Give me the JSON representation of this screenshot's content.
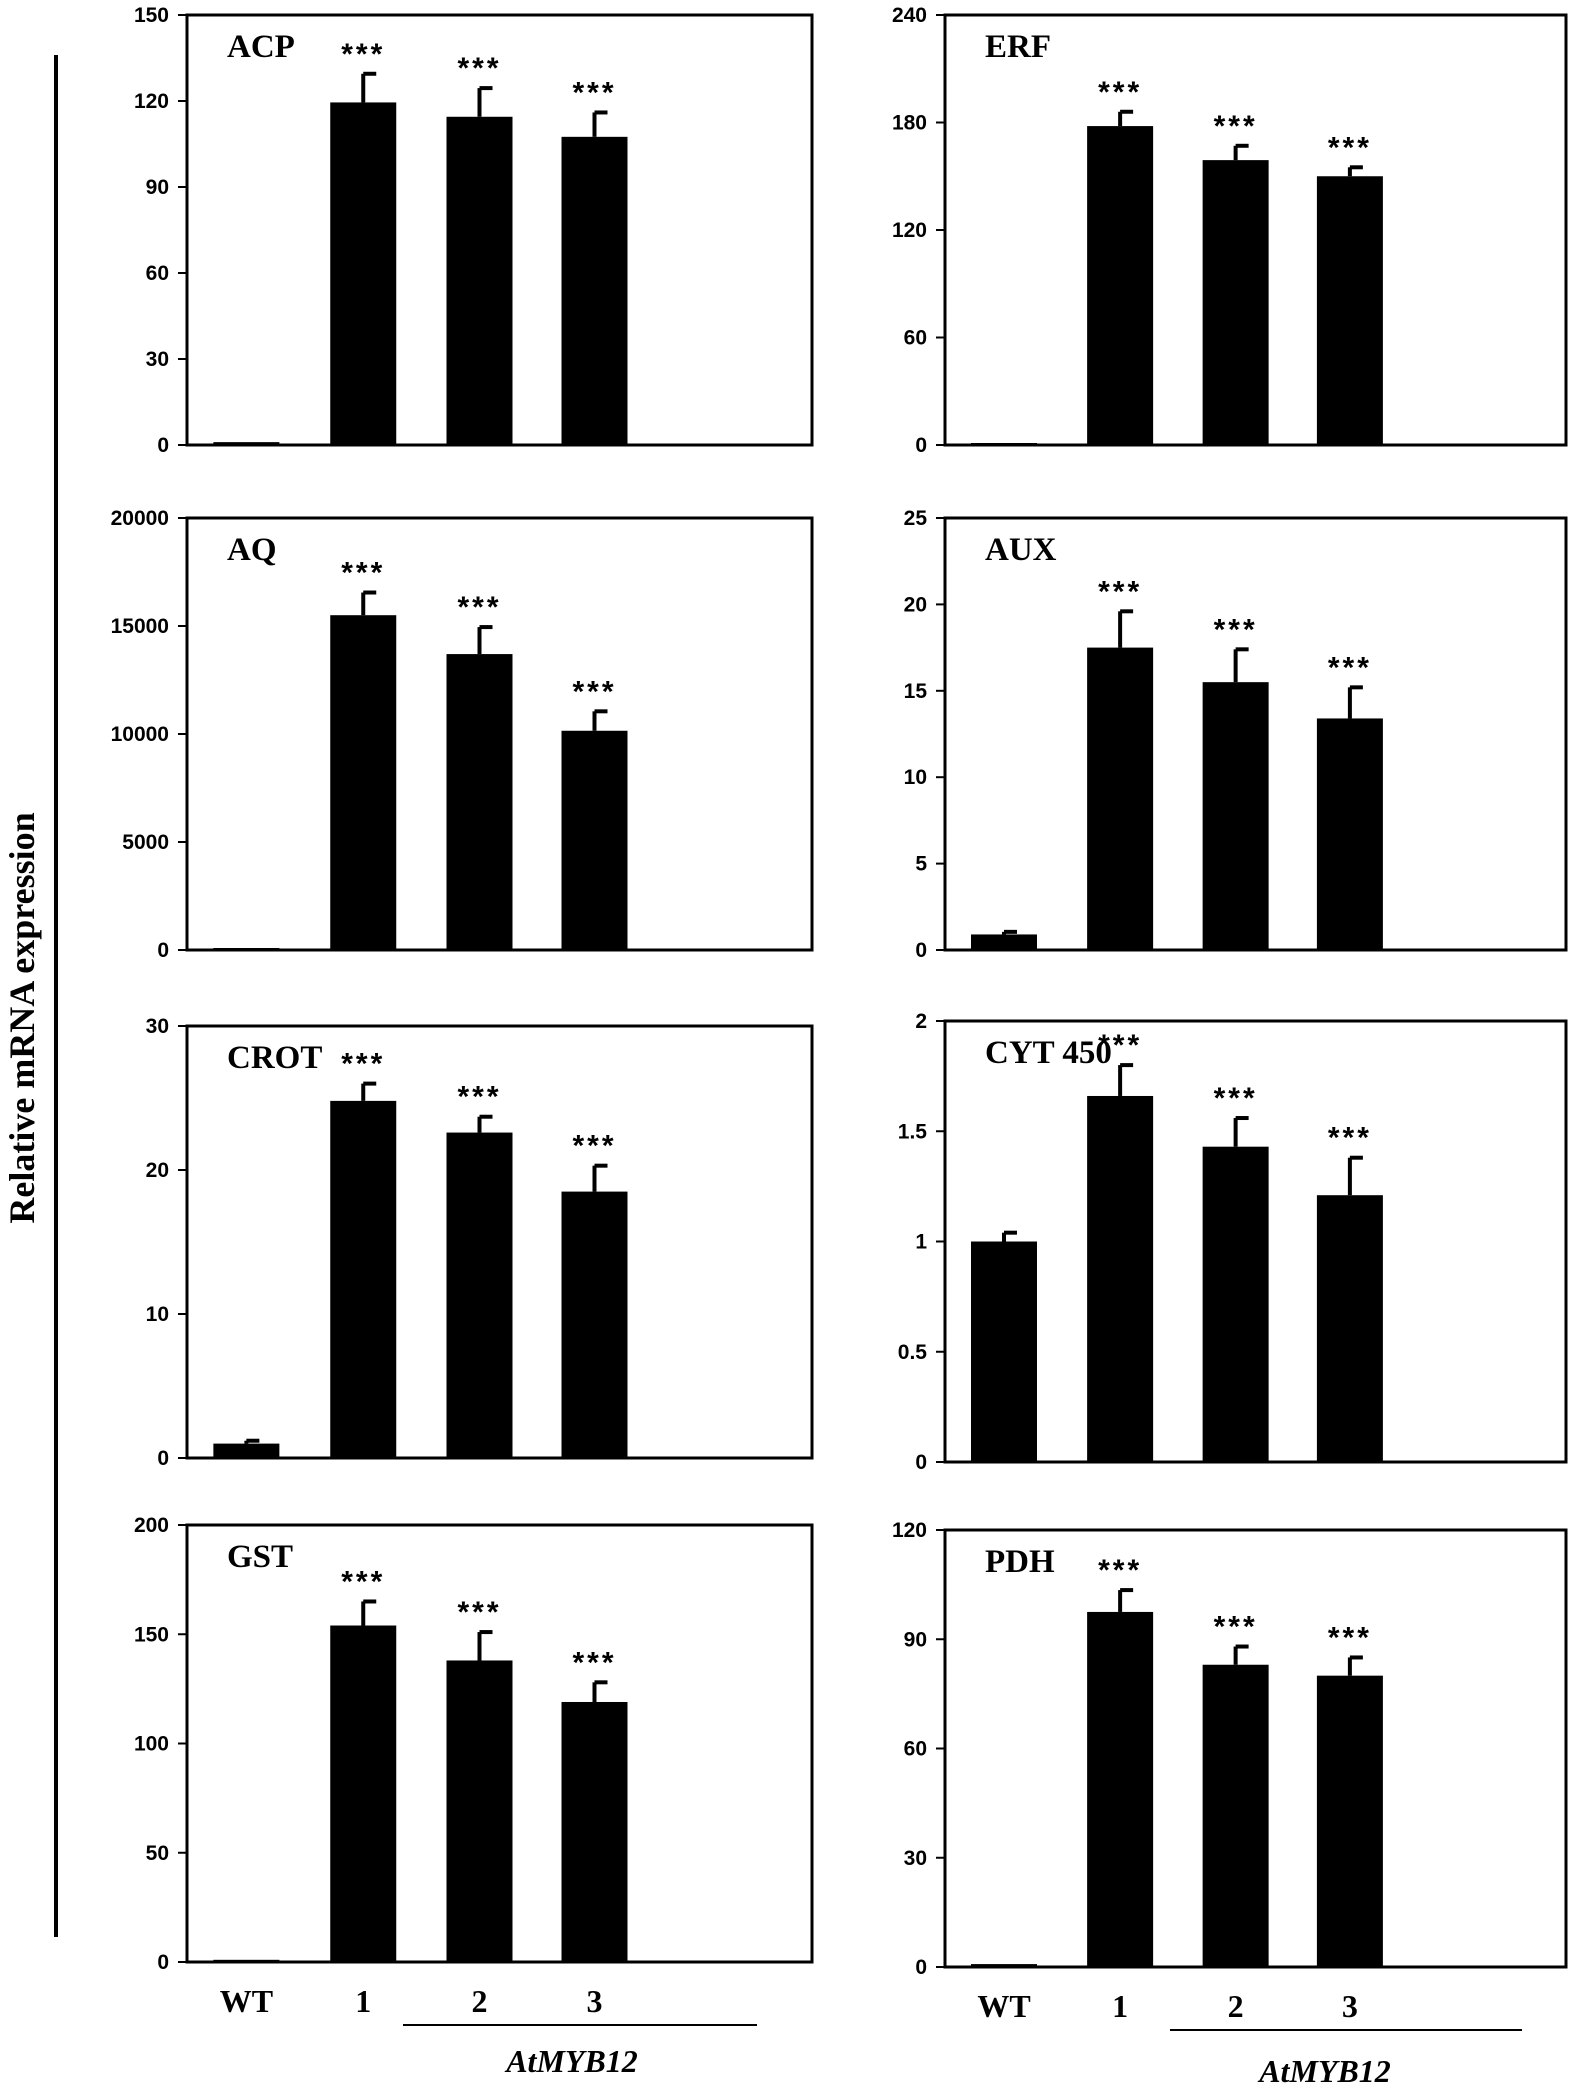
{
  "figure": {
    "ylabel": "Relative mRNA expression",
    "group_label": "AtMYB12"
  },
  "chart_data": [
    {
      "type": "bar",
      "title": "ACP",
      "categories": [
        "WT",
        "1",
        "2",
        "3"
      ],
      "values": [
        1,
        119.5,
        114.5,
        107.5
      ],
      "errors": [
        0,
        10,
        10,
        8.5
      ],
      "significance": [
        "",
        "***",
        "***",
        "***"
      ],
      "ylim": [
        0,
        150
      ],
      "yticks": [
        "0",
        "30",
        "60",
        "90",
        "120",
        "150"
      ],
      "show_xlabels": false
    },
    {
      "type": "bar",
      "title": "ERF",
      "categories": [
        "WT",
        "1",
        "2",
        "3"
      ],
      "values": [
        1,
        178,
        159,
        150
      ],
      "errors": [
        0,
        8,
        8,
        5
      ],
      "significance": [
        "",
        "***",
        "***",
        "***"
      ],
      "ylim": [
        0,
        240
      ],
      "yticks": [
        "0",
        "60",
        "120",
        "180",
        "240"
      ],
      "show_xlabels": false
    },
    {
      "type": "bar",
      "title": "AQ",
      "categories": [
        "WT",
        "1",
        "2",
        "3"
      ],
      "values": [
        80,
        15500,
        13700,
        10150
      ],
      "errors": [
        0,
        1050,
        1250,
        900
      ],
      "significance": [
        "",
        "***",
        "***",
        "***"
      ],
      "ylim": [
        0,
        20000
      ],
      "yticks": [
        "0",
        "5000",
        "10000",
        "15000",
        "20000"
      ],
      "show_xlabels": false
    },
    {
      "type": "bar",
      "title": "AUX",
      "categories": [
        "WT",
        "1",
        "2",
        "3"
      ],
      "values": [
        0.9,
        17.5,
        15.5,
        13.4
      ],
      "errors": [
        0.15,
        2.1,
        1.9,
        1.8
      ],
      "significance": [
        "",
        "***",
        "***",
        "***"
      ],
      "ylim": [
        0,
        25
      ],
      "yticks": [
        "0",
        "5",
        "10",
        "15",
        "20",
        "25"
      ],
      "show_xlabels": false
    },
    {
      "type": "bar",
      "title": "CROT",
      "categories": [
        "WT",
        "1",
        "2",
        "3"
      ],
      "values": [
        1,
        24.8,
        22.6,
        18.5
      ],
      "errors": [
        0.2,
        1.2,
        1.1,
        1.8
      ],
      "significance": [
        "",
        "***",
        "***",
        "***"
      ],
      "ylim": [
        0,
        30
      ],
      "yticks": [
        "0",
        "10",
        "20",
        "30"
      ],
      "show_xlabels": false
    },
    {
      "type": "bar",
      "title": "CYT 450",
      "categories": [
        "WT",
        "1",
        "2",
        "3"
      ],
      "values": [
        1,
        1.66,
        1.43,
        1.21
      ],
      "errors": [
        0.04,
        0.14,
        0.13,
        0.17
      ],
      "significance": [
        "",
        "***",
        "***",
        "***"
      ],
      "ylim": [
        0,
        2
      ],
      "yticks": [
        "0",
        "0.5",
        "1",
        "1.5",
        "2"
      ],
      "show_xlabels": false
    },
    {
      "type": "bar",
      "title": "GST",
      "categories": [
        "WT",
        "1",
        "2",
        "3"
      ],
      "values": [
        1,
        154,
        138,
        119
      ],
      "errors": [
        0,
        11,
        13,
        9
      ],
      "significance": [
        "",
        "***",
        "***",
        "***"
      ],
      "ylim": [
        0,
        200
      ],
      "yticks": [
        "0",
        "50",
        "100",
        "150",
        "200"
      ],
      "show_xlabels": true
    },
    {
      "type": "bar",
      "title": "PDH",
      "categories": [
        "WT",
        "1",
        "2",
        "3"
      ],
      "values": [
        0.8,
        97.5,
        83,
        80
      ],
      "errors": [
        0,
        6,
        5,
        5
      ],
      "significance": [
        "",
        "***",
        "***",
        "***"
      ],
      "ylim": [
        0,
        120
      ],
      "yticks": [
        "0",
        "30",
        "60",
        "90",
        "120"
      ],
      "show_xlabels": true
    }
  ]
}
